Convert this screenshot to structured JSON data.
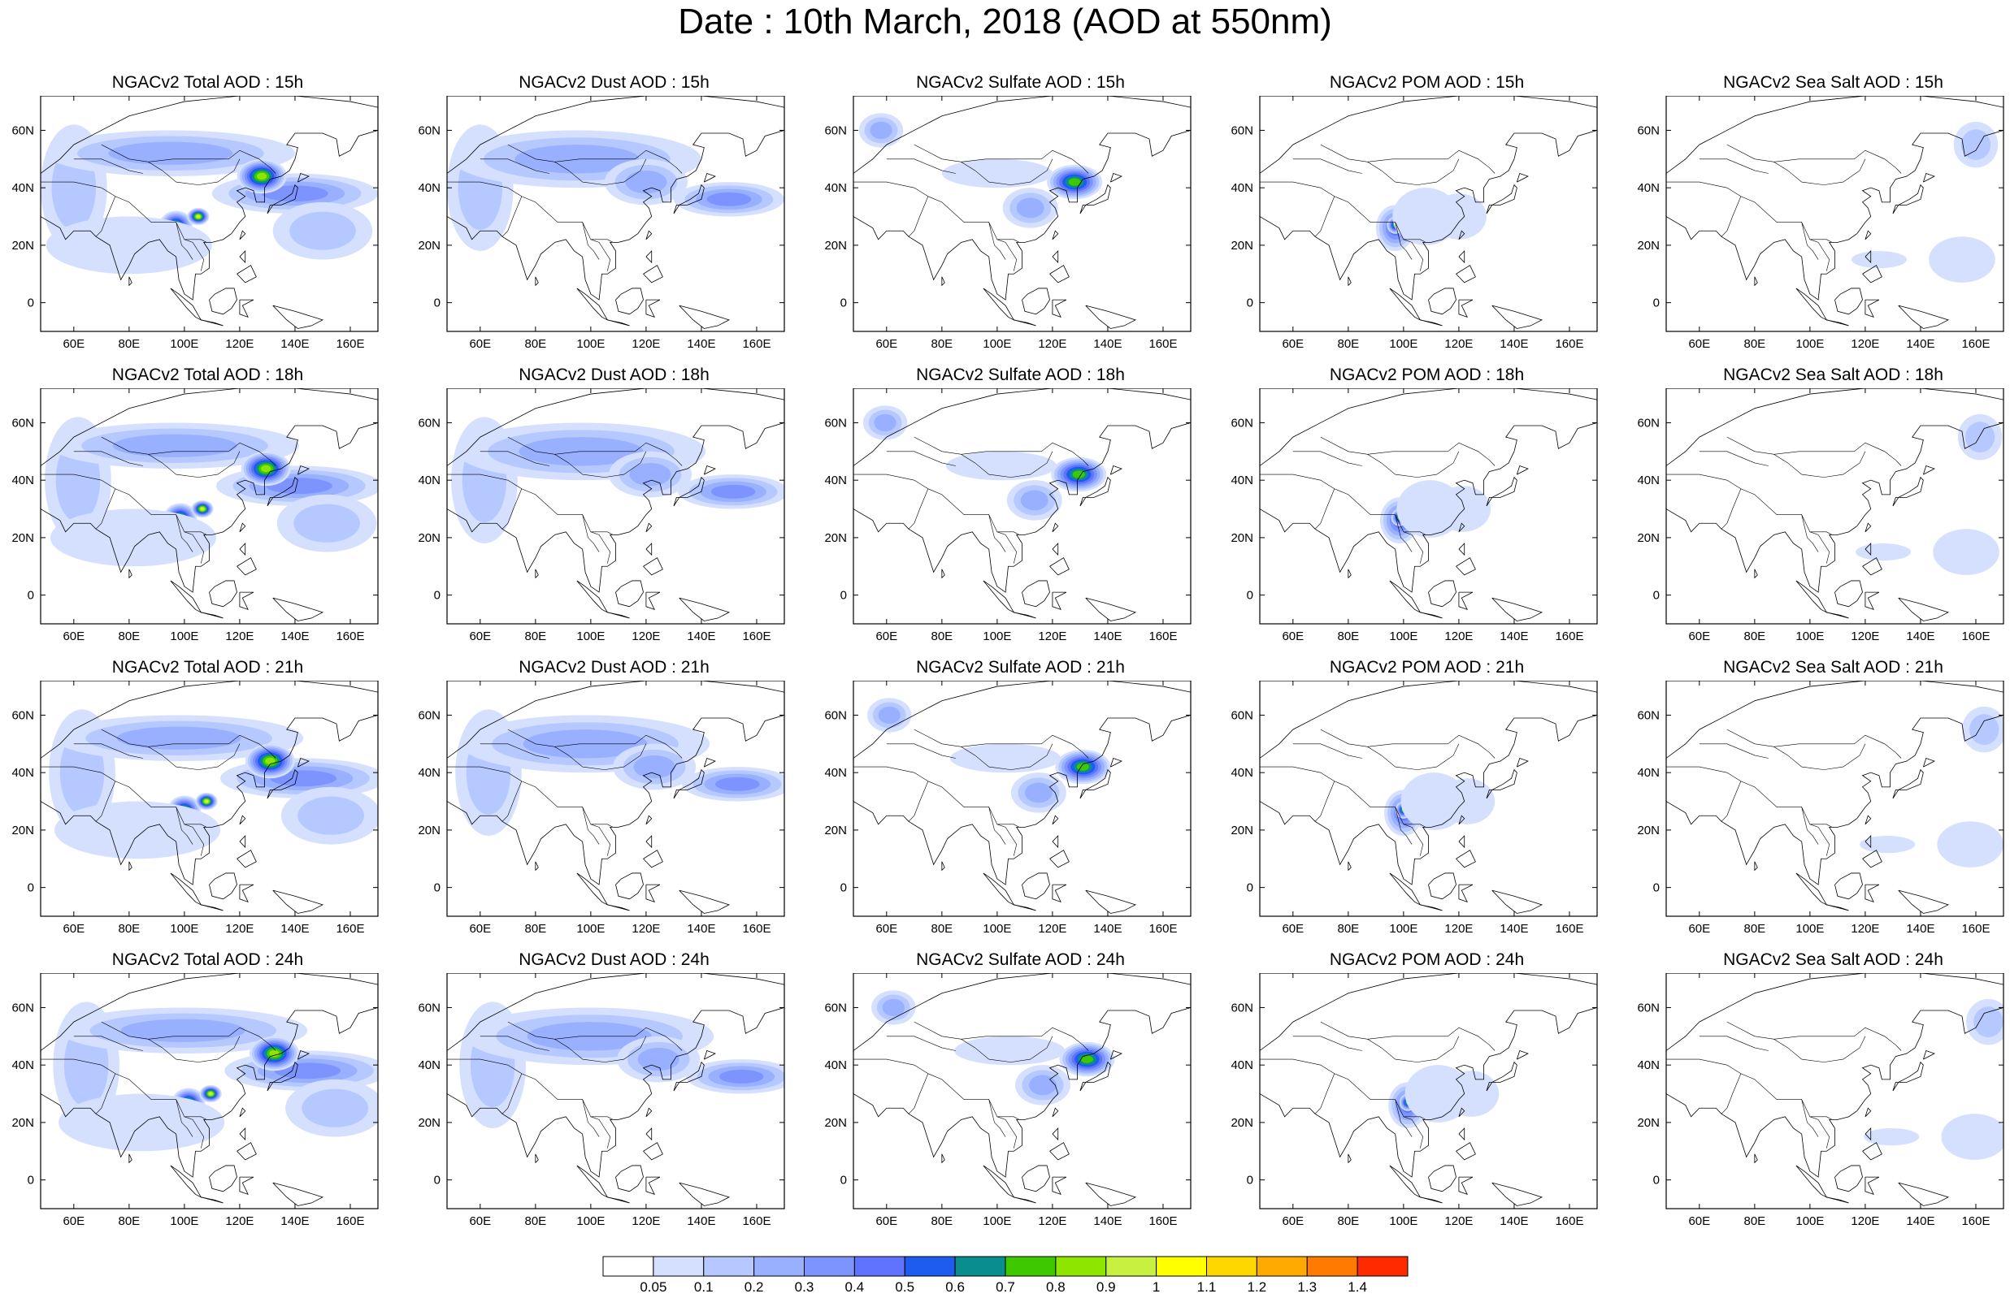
{
  "title": "Date : 10th March, 2018 (AOD at 550nm)",
  "panel_titles": [
    [
      "NGACv2 Total AOD : 15h",
      "NGACv2 Dust AOD : 15h",
      "NGACv2 Sulfate AOD : 15h",
      "NGACv2 POM AOD : 15h",
      "NGACv2 Sea Salt AOD : 15h"
    ],
    [
      "NGACv2 Total AOD : 18h",
      "NGACv2 Dust AOD : 18h",
      "NGACv2 Sulfate AOD : 18h",
      "NGACv2 POM AOD : 18h",
      "NGACv2 Sea Salt AOD : 18h"
    ],
    [
      "NGACv2 Total AOD : 21h",
      "NGACv2 Dust AOD : 21h",
      "NGACv2 Sulfate AOD : 21h",
      "NGACv2 POM AOD : 21h",
      "NGACv2 Sea Salt AOD : 21h"
    ],
    [
      "NGACv2 Total AOD : 24h",
      "NGACv2 Dust AOD : 24h",
      "NGACv2 Sulfate AOD : 24h",
      "NGACv2 POM AOD : 24h",
      "NGACv2 Sea Salt  AOD : 24h"
    ]
  ],
  "map": {
    "lon_range": [
      48,
      170
    ],
    "lat_range": [
      -10,
      72
    ],
    "x_ticks": [
      {
        "v": 60,
        "label": "60E"
      },
      {
        "v": 80,
        "label": "80E"
      },
      {
        "v": 100,
        "label": "100E"
      },
      {
        "v": 120,
        "label": "120E"
      },
      {
        "v": 140,
        "label": "140E"
      },
      {
        "v": 160,
        "label": "160E"
      }
    ],
    "y_ticks": [
      {
        "v": 0,
        "label": "0"
      },
      {
        "v": 20,
        "label": "20N"
      },
      {
        "v": 40,
        "label": "40N"
      },
      {
        "v": 60,
        "label": "60N"
      }
    ]
  },
  "colorbar": {
    "colors": [
      "#ffffff",
      "#d5e0ff",
      "#b5c8ff",
      "#98b0ff",
      "#7d94ff",
      "#5f73ff",
      "#1e5cf0",
      "#0a8d8d",
      "#3ec800",
      "#8ee600",
      "#c8f040",
      "#ffff00",
      "#ffd700",
      "#ffaa00",
      "#ff7a00",
      "#ff2a00"
    ],
    "labels": [
      "0.05",
      "0.1",
      "0.2",
      "0.3",
      "0.4",
      "0.5",
      "0.6",
      "0.7",
      "0.8",
      "0.9",
      "1",
      "1.1",
      "1.2",
      "1.3",
      "1.4"
    ]
  },
  "fields": {
    "total": [
      {
        "lon": 60,
        "lat": 40,
        "rx": 12,
        "ry": 22,
        "level": 2
      },
      {
        "lon": 95,
        "lat": 52,
        "rx": 45,
        "ry": 8,
        "level": 3
      },
      {
        "lon": 140,
        "lat": 38,
        "rx": 30,
        "ry": 7,
        "level": 4
      },
      {
        "lon": 128,
        "lat": 44,
        "rx": 9,
        "ry": 6,
        "level": 9
      },
      {
        "lon": 97,
        "lat": 27,
        "rx": 6,
        "ry": 5,
        "level": 8
      },
      {
        "lon": 105,
        "lat": 30,
        "rx": 4,
        "ry": 3,
        "level": 10
      },
      {
        "lon": 80,
        "lat": 20,
        "rx": 30,
        "ry": 10,
        "level": 1
      },
      {
        "lon": 150,
        "lat": 25,
        "rx": 18,
        "ry": 10,
        "level": 2
      }
    ],
    "dust": [
      {
        "lon": 60,
        "lat": 40,
        "rx": 12,
        "ry": 22,
        "level": 2
      },
      {
        "lon": 95,
        "lat": 50,
        "rx": 45,
        "ry": 10,
        "level": 3
      },
      {
        "lon": 150,
        "lat": 36,
        "rx": 20,
        "ry": 6,
        "level": 4
      },
      {
        "lon": 120,
        "lat": 42,
        "rx": 15,
        "ry": 8,
        "level": 3
      }
    ],
    "sulfate": [
      {
        "lon": 58,
        "lat": 60,
        "rx": 8,
        "ry": 6,
        "level": 3
      },
      {
        "lon": 128,
        "lat": 42,
        "rx": 10,
        "ry": 6,
        "level": 8
      },
      {
        "lon": 112,
        "lat": 33,
        "rx": 10,
        "ry": 7,
        "level": 3
      },
      {
        "lon": 100,
        "lat": 45,
        "rx": 20,
        "ry": 5,
        "level": 1
      }
    ],
    "pom": [
      {
        "lon": 97,
        "lat": 26,
        "rx": 7,
        "ry": 8,
        "level": 5
      },
      {
        "lon": 97,
        "lat": 27,
        "rx": 3,
        "ry": 3,
        "level": 8
      },
      {
        "lon": 108,
        "lat": 30,
        "rx": 12,
        "ry": 10,
        "level": 1
      },
      {
        "lon": 120,
        "lat": 30,
        "rx": 10,
        "ry": 8,
        "level": 1
      }
    ],
    "seasalt": [
      {
        "lon": 160,
        "lat": 55,
        "rx": 8,
        "ry": 8,
        "level": 2
      },
      {
        "lon": 155,
        "lat": 15,
        "rx": 12,
        "ry": 8,
        "level": 1
      },
      {
        "lon": 125,
        "lat": 15,
        "rx": 10,
        "ry": 3,
        "level": 1
      }
    ]
  }
}
